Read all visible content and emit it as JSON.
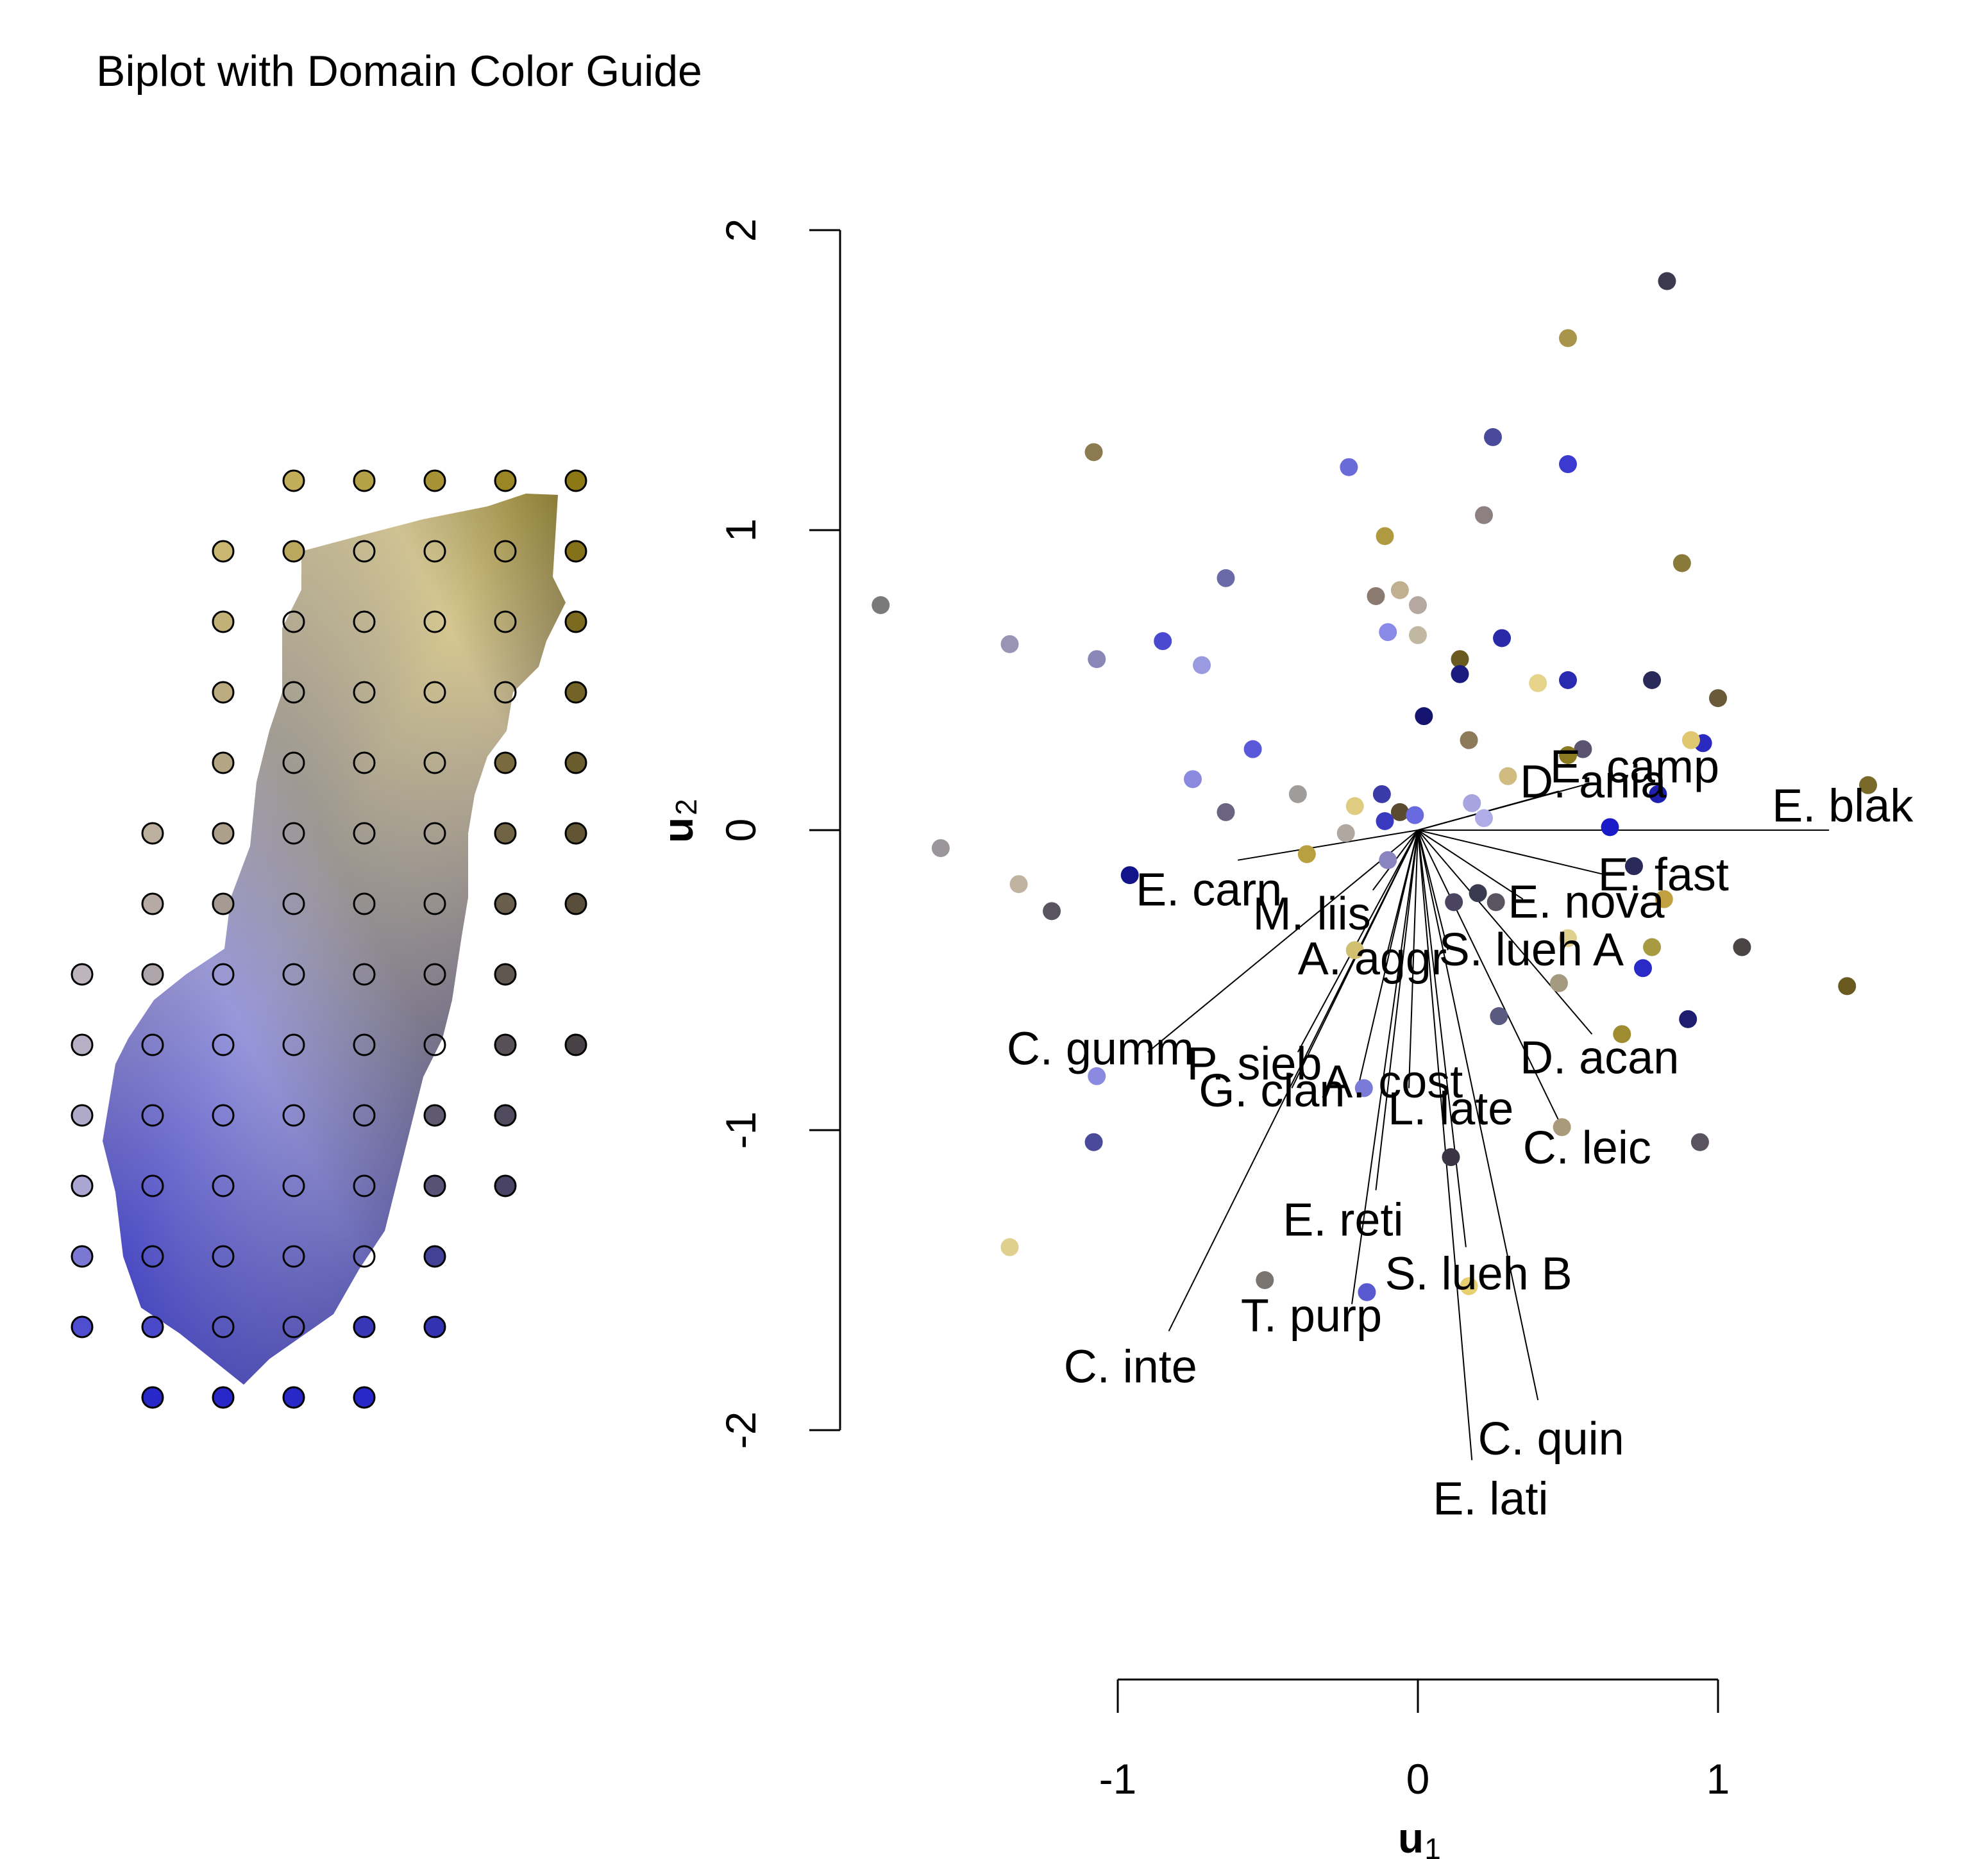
{
  "title": "Biplot with Domain Color Guide",
  "colors": {
    "gold": "#8C7A10",
    "blue": "#1A1AA8",
    "lightblue": "#9A9AF0",
    "beige": "#E8D98A",
    "mid": "#9A8C8C"
  },
  "chart_data": {
    "type": "scatter",
    "title": "Biplot with Domain Color Guide",
    "xlabel": "u",
    "xlabel_sub": "1",
    "ylabel": "u",
    "ylabel_sub": "2",
    "xlim": [
      -1.78,
      1.78
    ],
    "ylim": [
      -2.0,
      2.0
    ],
    "xticks": [
      -1,
      0,
      1
    ],
    "yticks": [
      -2,
      -1,
      0,
      1,
      2
    ],
    "guide": {
      "description": "Domain color guide with grid of sample sites over the region",
      "rows": [
        {
          "y": 0,
          "cols": [
            3,
            4,
            5,
            6,
            7
          ]
        },
        {
          "y": 1,
          "cols": [
            2,
            3,
            4,
            5,
            6,
            7
          ]
        },
        {
          "y": 2,
          "cols": [
            2,
            3,
            4,
            5,
            6,
            7
          ]
        },
        {
          "y": 3,
          "cols": [
            2,
            3,
            4,
            5,
            6,
            7
          ]
        },
        {
          "y": 4,
          "cols": [
            2,
            3,
            4,
            5,
            6,
            7
          ]
        },
        {
          "y": 5,
          "cols": [
            1,
            2,
            3,
            4,
            5,
            6,
            7
          ]
        },
        {
          "y": 6,
          "cols": [
            1,
            2,
            3,
            4,
            5,
            6,
            7
          ]
        },
        {
          "y": 7,
          "cols": [
            0,
            1,
            2,
            3,
            4,
            5,
            6
          ]
        },
        {
          "y": 8,
          "cols": [
            0,
            1,
            2,
            3,
            4,
            5,
            6,
            7
          ]
        },
        {
          "y": 9,
          "cols": [
            0,
            1,
            2,
            3,
            4,
            5,
            6
          ]
        },
        {
          "y": 10,
          "cols": [
            0,
            1,
            2,
            3,
            4,
            5,
            6
          ]
        },
        {
          "y": 11,
          "cols": [
            0,
            1,
            2,
            3,
            4,
            5
          ]
        },
        {
          "y": 12,
          "cols": [
            0,
            1,
            2,
            3,
            4,
            5
          ]
        },
        {
          "y": 13,
          "cols": [
            1,
            2,
            3,
            4
          ]
        }
      ]
    },
    "points": [
      {
        "x": 0.83,
        "y": 1.83,
        "c": "#3E3A4E"
      },
      {
        "x": 0.5,
        "y": 1.64,
        "c": "#A8944A"
      },
      {
        "x": -1.08,
        "y": 1.26,
        "c": "#8C7A50"
      },
      {
        "x": -0.23,
        "y": 1.21,
        "c": "#6A6AD8"
      },
      {
        "x": 0.25,
        "y": 1.31,
        "c": "#4A4A9A"
      },
      {
        "x": 0.5,
        "y": 1.22,
        "c": "#3A3AD0"
      },
      {
        "x": 0.22,
        "y": 1.05,
        "c": "#8C8080"
      },
      {
        "x": -0.11,
        "y": 0.98,
        "c": "#B09A40"
      },
      {
        "x": 0.88,
        "y": 0.89,
        "c": "#8A7A3A"
      },
      {
        "x": -0.64,
        "y": 0.84,
        "c": "#6A6AA8"
      },
      {
        "x": -0.06,
        "y": 0.8,
        "c": "#C0B090"
      },
      {
        "x": -0.14,
        "y": 0.78,
        "c": "#8A7A70"
      },
      {
        "x": 0.0,
        "y": 0.75,
        "c": "#B4A8A0"
      },
      {
        "x": -1.79,
        "y": 0.75,
        "c": "#7A7A7A"
      },
      {
        "x": -0.1,
        "y": 0.66,
        "c": "#8A8AE8"
      },
      {
        "x": 0.0,
        "y": 0.65,
        "c": "#C0B8A0"
      },
      {
        "x": 0.28,
        "y": 0.64,
        "c": "#2A2AA8"
      },
      {
        "x": -0.85,
        "y": 0.63,
        "c": "#4A4AD0"
      },
      {
        "x": -1.36,
        "y": 0.62,
        "c": "#9A94B4"
      },
      {
        "x": -1.07,
        "y": 0.57,
        "c": "#8A86B8"
      },
      {
        "x": -0.72,
        "y": 0.55,
        "c": "#9A9AE0"
      },
      {
        "x": 0.14,
        "y": 0.57,
        "c": "#6A5A20"
      },
      {
        "x": 0.14,
        "y": 0.52,
        "c": "#1A1A80"
      },
      {
        "x": 0.4,
        "y": 0.49,
        "c": "#E6D48A"
      },
      {
        "x": 0.5,
        "y": 0.5,
        "c": "#2A2AB0"
      },
      {
        "x": 0.78,
        "y": 0.5,
        "c": "#2A2A5A"
      },
      {
        "x": 1.0,
        "y": 0.44,
        "c": "#6A5A3A"
      },
      {
        "x": 0.02,
        "y": 0.38,
        "c": "#14146E"
      },
      {
        "x": 0.17,
        "y": 0.3,
        "c": "#8C7A5A"
      },
      {
        "x": 0.95,
        "y": 0.29,
        "c": "#2A2AC0"
      },
      {
        "x": 0.91,
        "y": 0.3,
        "c": "#E0C870"
      },
      {
        "x": 0.55,
        "y": 0.27,
        "c": "#5A5470"
      },
      {
        "x": 0.5,
        "y": 0.25,
        "c": "#8A7A20"
      },
      {
        "x": -0.55,
        "y": 0.27,
        "c": "#5A5AD8"
      },
      {
        "x": 0.3,
        "y": 0.18,
        "c": "#D0BC80"
      },
      {
        "x": -0.75,
        "y": 0.17,
        "c": "#8A8AE0"
      },
      {
        "x": 1.5,
        "y": 0.15,
        "c": "#7A6A2A"
      },
      {
        "x": -0.4,
        "y": 0.12,
        "c": "#A09C9A"
      },
      {
        "x": -0.12,
        "y": 0.12,
        "c": "#3A3AA8"
      },
      {
        "x": 0.18,
        "y": 0.09,
        "c": "#A8A4E0"
      },
      {
        "x": 0.8,
        "y": 0.12,
        "c": "#1E1EB0"
      },
      {
        "x": -0.21,
        "y": 0.08,
        "c": "#E0CC80"
      },
      {
        "x": -0.06,
        "y": 0.06,
        "c": "#5A4A30"
      },
      {
        "x": -0.01,
        "y": 0.05,
        "c": "#6A6AE0"
      },
      {
        "x": -0.11,
        "y": 0.03,
        "c": "#3A3AC0"
      },
      {
        "x": -0.64,
        "y": 0.06,
        "c": "#6A6480"
      },
      {
        "x": 0.22,
        "y": 0.04,
        "c": "#B0ACE8"
      },
      {
        "x": 0.64,
        "y": 0.01,
        "c": "#1A1AC8"
      },
      {
        "x": -0.24,
        "y": -0.01,
        "c": "#B0A8A0"
      },
      {
        "x": -1.59,
        "y": -0.06,
        "c": "#9A969A"
      },
      {
        "x": -0.37,
        "y": -0.08,
        "c": "#B8A040"
      },
      {
        "x": -0.1,
        "y": -0.1,
        "c": "#8A84C0"
      },
      {
        "x": 0.72,
        "y": -0.12,
        "c": "#2A2A5A"
      },
      {
        "x": -0.96,
        "y": -0.15,
        "c": "#14148A"
      },
      {
        "x": -1.33,
        "y": -0.18,
        "c": "#C0B4A0"
      },
      {
        "x": -1.22,
        "y": -0.27,
        "c": "#5A5460"
      },
      {
        "x": 0.2,
        "y": -0.21,
        "c": "#3A3A50"
      },
      {
        "x": 0.12,
        "y": -0.24,
        "c": "#4A4460"
      },
      {
        "x": 0.26,
        "y": -0.24,
        "c": "#5A5460"
      },
      {
        "x": 0.82,
        "y": -0.23,
        "c": "#C0A040"
      },
      {
        "x": -0.21,
        "y": -0.4,
        "c": "#D0C070"
      },
      {
        "x": 0.5,
        "y": -0.36,
        "c": "#E0D090"
      },
      {
        "x": 0.78,
        "y": -0.39,
        "c": "#A89A40"
      },
      {
        "x": 1.08,
        "y": -0.39,
        "c": "#4A4444"
      },
      {
        "x": 0.75,
        "y": -0.46,
        "c": "#2A2AC8"
      },
      {
        "x": 0.47,
        "y": -0.51,
        "c": "#A49A80"
      },
      {
        "x": 1.43,
        "y": -0.52,
        "c": "#6A5A20"
      },
      {
        "x": 0.27,
        "y": -0.62,
        "c": "#5A5A80"
      },
      {
        "x": 0.9,
        "y": -0.63,
        "c": "#1E1E70"
      },
      {
        "x": 0.68,
        "y": -0.68,
        "c": "#A08C30"
      },
      {
        "x": -1.07,
        "y": -0.82,
        "c": "#8A8AE0"
      },
      {
        "x": -0.18,
        "y": -0.86,
        "c": "#7A7AD8"
      },
      {
        "x": 0.48,
        "y": -0.99,
        "c": "#A89A7A"
      },
      {
        "x": 0.94,
        "y": -1.04,
        "c": "#5A5460"
      },
      {
        "x": -1.08,
        "y": -1.04,
        "c": "#4A4A9A"
      },
      {
        "x": 0.11,
        "y": -1.09,
        "c": "#3A3444"
      },
      {
        "x": -1.36,
        "y": -1.39,
        "c": "#E0D090"
      },
      {
        "x": -0.51,
        "y": -1.5,
        "c": "#7A7470"
      },
      {
        "x": -0.17,
        "y": -1.54,
        "c": "#5A5AD0"
      },
      {
        "x": 0.17,
        "y": -1.52,
        "c": "#E6D070"
      }
    ],
    "arrows": [
      {
        "name": "E. camp",
        "x": 0.55,
        "y": 0.15,
        "lx": 0.44,
        "ly": 0.21
      },
      {
        "name": "D. ania",
        "x": 0.47,
        "y": 0.13,
        "lx": 0.34,
        "ly": 0.16
      },
      {
        "name": "E. blak",
        "x": 1.37,
        "y": 0.0,
        "lx": 1.18,
        "ly": 0.08
      },
      {
        "name": "E. fast",
        "x": 0.63,
        "y": -0.15,
        "lx": 0.6,
        "ly": -0.15
      },
      {
        "name": "E. carn",
        "x": -0.6,
        "y": -0.1,
        "lx": -0.94,
        "ly": -0.2
      },
      {
        "name": "M. liis",
        "x": -0.15,
        "y": -0.2,
        "lx": -0.55,
        "ly": -0.28
      },
      {
        "name": "E. nova",
        "x": 0.35,
        "y": -0.23,
        "lx": 0.3,
        "ly": -0.24
      },
      {
        "name": "A. aggr",
        "x": -0.1,
        "y": -0.4,
        "lx": -0.4,
        "ly": -0.43
      },
      {
        "name": "S. lueh A",
        "x": 0.1,
        "y": -0.4,
        "lx": 0.07,
        "ly": -0.4
      },
      {
        "name": "C. gumm",
        "x": -0.9,
        "y": -0.74,
        "lx": -1.37,
        "ly": -0.73
      },
      {
        "name": "D. acan",
        "x": 0.58,
        "y": -0.68,
        "lx": 0.34,
        "ly": -0.76
      },
      {
        "name": "P. sieb",
        "x": -0.4,
        "y": -0.74,
        "lx": -0.77,
        "ly": -0.78
      },
      {
        "name": "A. cost",
        "x": -0.2,
        "y": -0.86,
        "lx": -0.32,
        "ly": -0.84
      },
      {
        "name": "G. clan",
        "x": -0.42,
        "y": -0.86,
        "lx": -0.73,
        "ly": -0.87
      },
      {
        "name": "L. late",
        "x": -0.03,
        "y": -0.86,
        "lx": -0.1,
        "ly": -0.93
      },
      {
        "name": "C. leic",
        "x": 0.48,
        "y": -0.99,
        "lx": 0.35,
        "ly": -1.06
      },
      {
        "name": "E. reti",
        "x": -0.14,
        "y": -1.2,
        "lx": -0.45,
        "ly": -1.3
      },
      {
        "name": "S. lueh B",
        "x": 0.16,
        "y": -1.39,
        "lx": -0.11,
        "ly": -1.48
      },
      {
        "name": "T. purp",
        "x": -0.22,
        "y": -1.58,
        "lx": -0.59,
        "ly": -1.62
      },
      {
        "name": "C. inte",
        "x": -0.83,
        "y": -1.67,
        "lx": -1.18,
        "ly": -1.79
      },
      {
        "name": "C. quin",
        "x": 0.4,
        "y": -1.9,
        "lx": 0.2,
        "ly": -2.03
      },
      {
        "name": "E. lati",
        "x": 0.18,
        "y": -2.1,
        "lx": 0.05,
        "ly": -2.23
      }
    ]
  }
}
